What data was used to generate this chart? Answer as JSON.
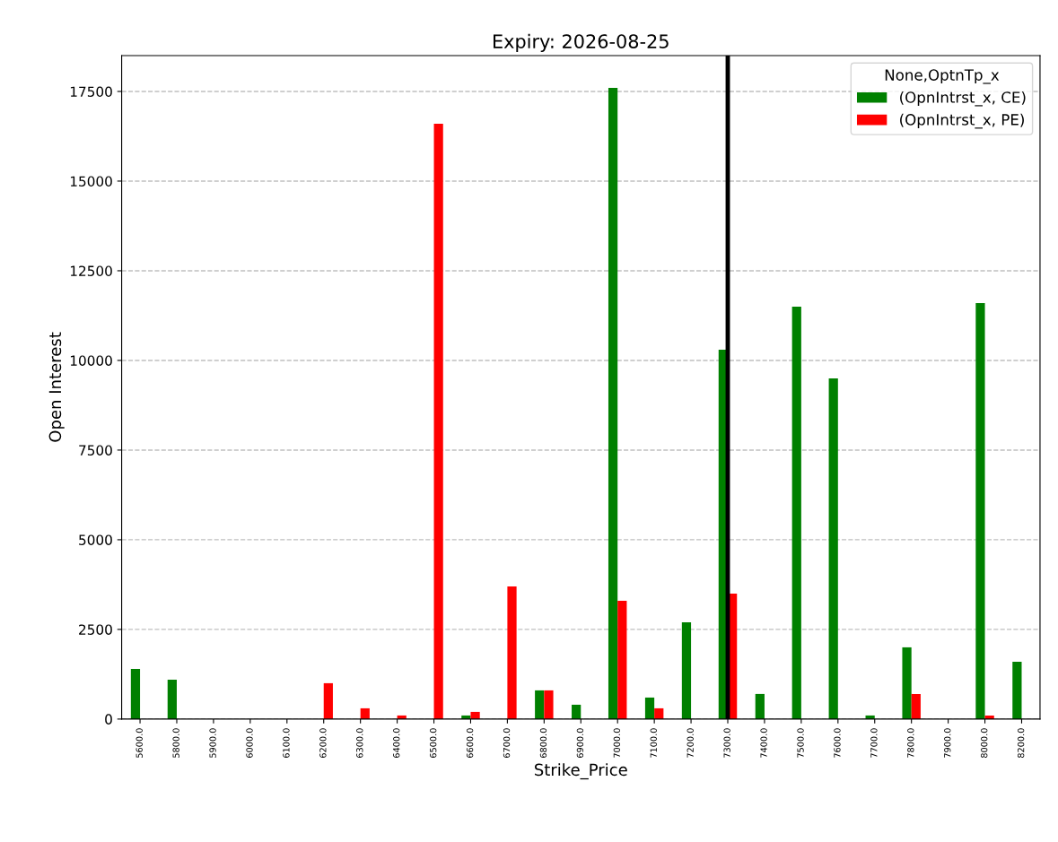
{
  "chart_data": {
    "type": "bar",
    "title": "Expiry: 2026-08-25",
    "xlabel": "Strike_Price",
    "ylabel": "Open Interest",
    "legend_title": "None,OptnTp_x",
    "categories": [
      "5600.0",
      "5800.0",
      "5900.0",
      "6000.0",
      "6100.0",
      "6200.0",
      "6300.0",
      "6400.0",
      "6500.0",
      "6600.0",
      "6700.0",
      "6800.0",
      "6900.0",
      "7000.0",
      "7100.0",
      "7200.0",
      "7300.0",
      "7400.0",
      "7500.0",
      "7600.0",
      "7700.0",
      "7800.0",
      "7900.0",
      "8000.0",
      "8200.0"
    ],
    "series": [
      {
        "name": "(OpnIntrst_x, CE)",
        "color": "#008000",
        "values": [
          1400,
          1100,
          0,
          0,
          0,
          0,
          0,
          0,
          0,
          100,
          0,
          800,
          400,
          17600,
          600,
          2700,
          10300,
          700,
          11500,
          9500,
          100,
          2000,
          0,
          11600,
          1600
        ]
      },
      {
        "name": "(OpnIntrst_x, PE)",
        "color": "#ff0000",
        "values": [
          0,
          0,
          0,
          0,
          0,
          1000,
          300,
          100,
          16600,
          200,
          3700,
          800,
          0,
          3300,
          300,
          0,
          3500,
          0,
          0,
          0,
          0,
          700,
          0,
          100,
          0
        ]
      }
    ],
    "ylim": [
      0,
      18500
    ],
    "yticks": [
      0,
      2500,
      5000,
      7500,
      10000,
      12500,
      15000,
      17500
    ],
    "grid": "y",
    "legend": "top right",
    "ref_lines": [
      {
        "axis": "x",
        "value": "7300.0",
        "color": "#000000",
        "line_style": "solid"
      }
    ]
  }
}
